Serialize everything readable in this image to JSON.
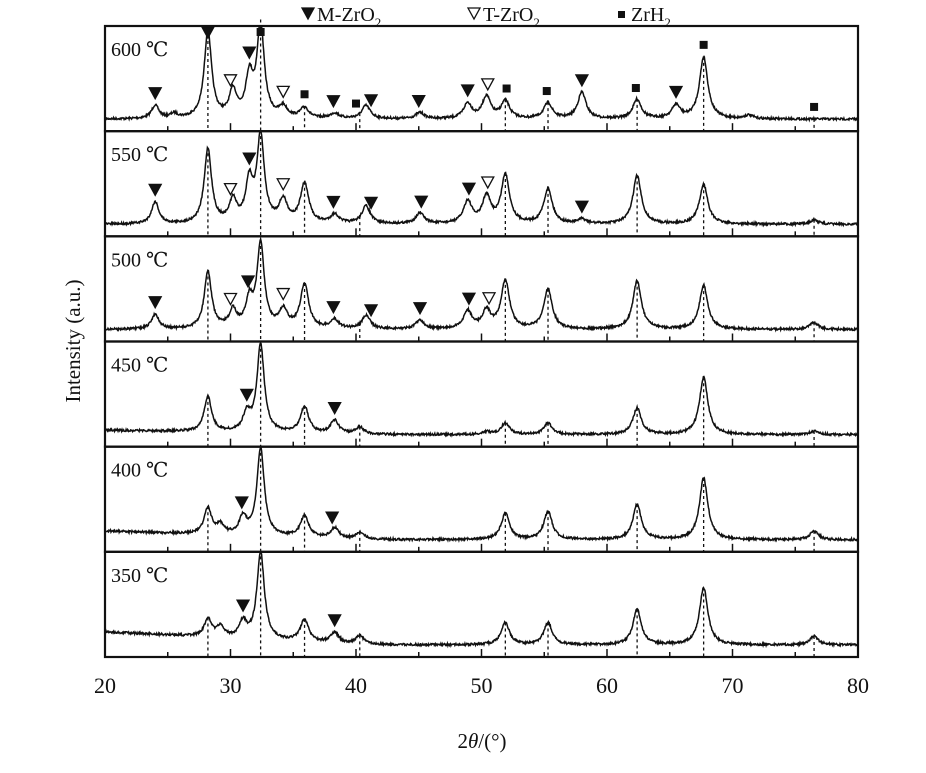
{
  "chart_data": {
    "type": "line",
    "title": "",
    "xlabel": {
      "prefix": "2",
      "symbol": "θ",
      "suffix": "/(°)"
    },
    "ylabel": "Intensity (a.u.)",
    "xlim": [
      20,
      80
    ],
    "xticks": [
      20,
      30,
      40,
      50,
      60,
      70,
      80
    ],
    "grid": false,
    "legend": {
      "placement": "top-center",
      "entries": [
        {
          "marker": "filled-triangle",
          "label": "M-ZrO",
          "sub": "2"
        },
        {
          "marker": "open-triangle",
          "label": "T-ZrO",
          "sub": "2"
        },
        {
          "marker": "filled-square",
          "label": "ZrH",
          "sub": "2"
        }
      ]
    },
    "reference_lines_2theta": [
      28.2,
      32.4,
      35.9,
      40.3,
      51.9,
      55.3,
      62.4,
      67.7,
      76.5
    ],
    "series": [
      {
        "name": "600 ℃",
        "peaks": [
          [
            24.0,
            0.15
          ],
          [
            25.5,
            0.05
          ],
          [
            28.2,
            1.0
          ],
          [
            30.2,
            0.3
          ],
          [
            31.5,
            0.45
          ],
          [
            32.4,
            1.05
          ],
          [
            34.2,
            0.12
          ],
          [
            35.9,
            0.12
          ],
          [
            38.3,
            0.06
          ],
          [
            40.8,
            0.15
          ],
          [
            45.1,
            0.07
          ],
          [
            48.9,
            0.17
          ],
          [
            50.4,
            0.25
          ],
          [
            51.9,
            0.2
          ],
          [
            55.3,
            0.18
          ],
          [
            58.0,
            0.3
          ],
          [
            62.4,
            0.22
          ],
          [
            65.5,
            0.15
          ],
          [
            67.7,
            0.7
          ],
          [
            71.3,
            0.04
          ]
        ],
        "markers": [
          [
            "M",
            24.0
          ],
          [
            "M",
            28.2
          ],
          [
            "T",
            30.0
          ],
          [
            "M",
            31.5
          ],
          [
            "H",
            32.4
          ],
          [
            "T",
            34.2
          ],
          [
            "H",
            35.9
          ],
          [
            "M",
            38.2
          ],
          [
            "H",
            40.0
          ],
          [
            "M",
            41.2
          ],
          [
            "M",
            45.0
          ],
          [
            "M",
            48.9
          ],
          [
            "T",
            50.5
          ],
          [
            "H",
            52.0
          ],
          [
            "H",
            55.2
          ],
          [
            "M",
            58.0
          ],
          [
            "H",
            62.3
          ],
          [
            "M",
            65.5
          ],
          [
            "H",
            67.7
          ],
          [
            "H",
            76.5
          ]
        ]
      },
      {
        "name": "550 ℃",
        "peaks": [
          [
            24.0,
            0.25
          ],
          [
            28.2,
            0.85
          ],
          [
            30.2,
            0.25
          ],
          [
            31.5,
            0.45
          ],
          [
            32.4,
            0.98
          ],
          [
            34.2,
            0.25
          ],
          [
            35.9,
            0.45
          ],
          [
            38.3,
            0.1
          ],
          [
            40.8,
            0.2
          ],
          [
            45.1,
            0.12
          ],
          [
            48.9,
            0.25
          ],
          [
            50.4,
            0.3
          ],
          [
            51.9,
            0.55
          ],
          [
            55.3,
            0.4
          ],
          [
            58.0,
            0.05
          ],
          [
            62.4,
            0.55
          ],
          [
            67.7,
            0.45
          ],
          [
            76.5,
            0.05
          ]
        ],
        "markers": [
          [
            "M",
            24.0
          ],
          [
            "T",
            30.0
          ],
          [
            "M",
            31.5
          ],
          [
            "T",
            34.2
          ],
          [
            "M",
            38.2
          ],
          [
            "M",
            41.2
          ],
          [
            "M",
            45.2
          ],
          [
            "M",
            49.0
          ],
          [
            "T",
            50.5
          ],
          [
            "M",
            58.0
          ]
        ]
      },
      {
        "name": "500 ℃",
        "peaks": [
          [
            24.0,
            0.17
          ],
          [
            28.2,
            0.65
          ],
          [
            30.2,
            0.2
          ],
          [
            31.5,
            0.3
          ],
          [
            32.4,
            0.95
          ],
          [
            34.2,
            0.2
          ],
          [
            35.9,
            0.5
          ],
          [
            38.3,
            0.1
          ],
          [
            40.8,
            0.15
          ],
          [
            45.1,
            0.1
          ],
          [
            48.9,
            0.2
          ],
          [
            50.4,
            0.2
          ],
          [
            51.9,
            0.55
          ],
          [
            55.3,
            0.45
          ],
          [
            62.4,
            0.55
          ],
          [
            67.7,
            0.5
          ],
          [
            76.5,
            0.08
          ]
        ],
        "markers": [
          [
            "M",
            24.0
          ],
          [
            "T",
            30.0
          ],
          [
            "M",
            31.4
          ],
          [
            "T",
            34.2
          ],
          [
            "M",
            38.2
          ],
          [
            "M",
            41.2
          ],
          [
            "M",
            45.1
          ],
          [
            "M",
            49.0
          ],
          [
            "T",
            50.6
          ]
        ]
      },
      {
        "name": "450 ℃",
        "peaks": [
          [
            28.2,
            0.4
          ],
          [
            31.3,
            0.2
          ],
          [
            32.4,
            1.0
          ],
          [
            35.9,
            0.3
          ],
          [
            38.3,
            0.15
          ],
          [
            40.3,
            0.08
          ],
          [
            50.4,
            0.03
          ],
          [
            51.9,
            0.13
          ],
          [
            55.3,
            0.13
          ],
          [
            62.4,
            0.3
          ],
          [
            67.7,
            0.65
          ],
          [
            76.5,
            0.04
          ]
        ],
        "markers": [
          [
            "M",
            31.3
          ],
          [
            "M",
            38.3
          ]
        ]
      },
      {
        "name": "400 ℃",
        "peaks": [
          [
            28.2,
            0.3
          ],
          [
            29.2,
            0.1
          ],
          [
            31.0,
            0.2
          ],
          [
            32.4,
            1.0
          ],
          [
            35.9,
            0.25
          ],
          [
            38.3,
            0.12
          ],
          [
            40.3,
            0.08
          ],
          [
            51.9,
            0.3
          ],
          [
            55.3,
            0.32
          ],
          [
            62.4,
            0.4
          ],
          [
            67.7,
            0.7
          ],
          [
            76.5,
            0.1
          ]
        ],
        "markers": [
          [
            "M",
            30.9
          ],
          [
            "M",
            38.1
          ]
        ]
      },
      {
        "name": "350 ℃",
        "peaks": [
          [
            28.2,
            0.2
          ],
          [
            29.2,
            0.12
          ],
          [
            31.0,
            0.18
          ],
          [
            32.4,
            1.0
          ],
          [
            35.9,
            0.25
          ],
          [
            38.3,
            0.12
          ],
          [
            40.3,
            0.1
          ],
          [
            51.9,
            0.25
          ],
          [
            55.3,
            0.25
          ],
          [
            62.4,
            0.4
          ],
          [
            67.7,
            0.65
          ],
          [
            76.5,
            0.1
          ]
        ],
        "markers": [
          [
            "M",
            31.0
          ],
          [
            "M",
            38.3
          ]
        ]
      }
    ]
  }
}
